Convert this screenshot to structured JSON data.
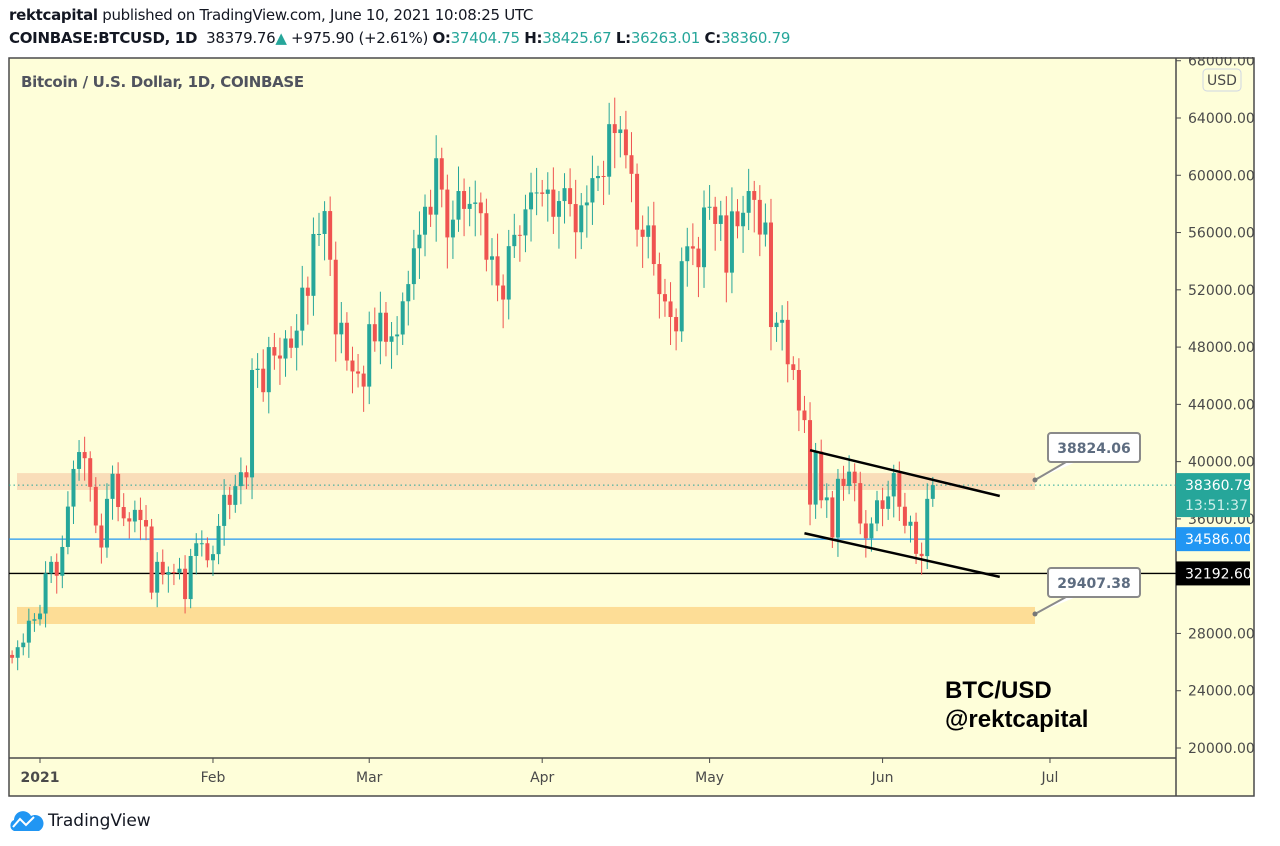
{
  "header": {
    "author": "rektcapital",
    "published": "published on TradingView.com, June 10, 2021 10:08:25 UTC",
    "symbol": "COINBASE:BTCUSD, 1D",
    "last": "38379.76",
    "change": "+975.90 (+2.61%)",
    "o_label": "O:",
    "o": "37404.75",
    "h_label": "H:",
    "h": "38425.67",
    "l_label": "L:",
    "l": "36263.01",
    "c_label": "C:",
    "c": "38360.79"
  },
  "chart_title": "Bitcoin / U.S. Dollar, 1D, COINBASE",
  "currency_badge": "USD",
  "watermark": {
    "line1": "BTC/USD",
    "line2": "@rektcapital"
  },
  "footer": {
    "brand": "TradingView"
  },
  "colors": {
    "up": "#26a69a",
    "down": "#ef5350",
    "background": "#fefed9",
    "blue_line": "#2196f3",
    "black_line": "#000000",
    "upper_zone": "#f8d9b5",
    "lower_zone": "#fdd98e"
  },
  "chart_data": {
    "type": "candlestick",
    "title": "Bitcoin / U.S. Dollar, 1D, COINBASE",
    "start_date": "2020-12-27",
    "first_open": 26500,
    "closes": [
      26300,
      27040,
      27360,
      28890,
      28990,
      29390,
      32200,
      33000,
      32030,
      34040,
      36860,
      39490,
      40670,
      40240,
      38240,
      35540,
      34000,
      37400,
      39150,
      36830,
      36040,
      35820,
      36630,
      35920,
      35470,
      30850,
      33000,
      32100,
      32290,
      32250,
      32520,
      30400,
      33410,
      34300,
      34300,
      33110,
      33540,
      35510,
      37680,
      36980,
      38290,
      39260,
      38900,
      46400,
      46490,
      44850,
      48000,
      47410,
      47200,
      48600,
      47950,
      49150,
      52150,
      51580,
      55900,
      55900,
      57500,
      54100,
      48890,
      49700,
      47060,
      46300,
      46150,
      45240,
      49600,
      48400,
      50400,
      48370,
      48750,
      48880,
      51200,
      52400,
      54900,
      55850,
      57800,
      57250,
      61190,
      59000,
      55660,
      56900,
      58900,
      57650,
      58000,
      58100,
      57350,
      54100,
      54340,
      52300,
      51320,
      55050,
      55840,
      55800,
      57620,
      58800,
      58800,
      58700,
      59000,
      57100,
      58200,
      59100,
      57990,
      56020,
      57900,
      58100,
      59800,
      59950,
      59900,
      63570,
      62950,
      63200,
      61400,
      60100,
      56200,
      55700,
      56500,
      53800,
      51700,
      51190,
      50100,
      49100,
      54000,
      55040,
      54880,
      53580,
      57750,
      57800,
      56600,
      57200,
      53200,
      57480,
      56440,
      57380,
      58900,
      58280,
      55860,
      56700,
      49400,
      49700,
      49900,
      46800,
      46400,
      43570,
      42900,
      37000,
      40700,
      37300,
      37500,
      34700,
      38800,
      38300,
      39300,
      38500,
      35680,
      34650,
      35680,
      37300,
      36700,
      37570,
      39200,
      36850,
      35520,
      35800,
      33560,
      33400,
      37400,
      38360.79
    ],
    "x_ticks": [
      {
        "label": "2021",
        "date": "2021-01-01"
      },
      {
        "label": "Feb",
        "date": "2021-02-01"
      },
      {
        "label": "Mar",
        "date": "2021-03-01"
      },
      {
        "label": "Apr",
        "date": "2021-04-01"
      },
      {
        "label": "May",
        "date": "2021-05-01"
      },
      {
        "label": "Jun",
        "date": "2021-06-01"
      },
      {
        "label": "Jul",
        "date": "2021-07-01"
      }
    ],
    "y_ticks": [
      "68000.00",
      "64000.00",
      "60000.00",
      "56000.00",
      "52000.00",
      "48000.00",
      "44000.00",
      "40000.00",
      "36000.00",
      "28000.00",
      "24000.00",
      "20000.00"
    ],
    "y_tick_values": [
      68000,
      64000,
      60000,
      56000,
      52000,
      48000,
      44000,
      40000,
      36000,
      28000,
      24000,
      20000
    ],
    "ylim": [
      20000,
      68000
    ],
    "zones": [
      {
        "name": "resistance-zone",
        "from": 38020,
        "to": 39200
      },
      {
        "name": "support-zone",
        "from": 28660,
        "to": 29850
      }
    ],
    "horizontal_lines": [
      {
        "name": "blue-line",
        "price": 34586.0,
        "label": "34586.00"
      },
      {
        "name": "black-line",
        "price": 32192.6,
        "label": "32192.60"
      }
    ],
    "last_price": {
      "price": 38360.79,
      "label": "38360.79",
      "countdown": "13:51:37"
    },
    "trendlines": [
      {
        "name": "upper-channel-line",
        "from": {
          "date": "2021-05-19",
          "price": 40800
        },
        "to": {
          "date": "2021-06-22",
          "price": 37600
        }
      },
      {
        "name": "lower-channel-line",
        "from": {
          "date": "2021-05-18",
          "price": 35000
        },
        "to": {
          "date": "2021-06-22",
          "price": 31950
        }
      }
    ],
    "callouts": [
      {
        "label": "38824.06",
        "date": "2021-06-30",
        "price": 38824.06
      },
      {
        "label": "29407.38",
        "date": "2021-06-30",
        "price": 29407.38
      }
    ]
  }
}
